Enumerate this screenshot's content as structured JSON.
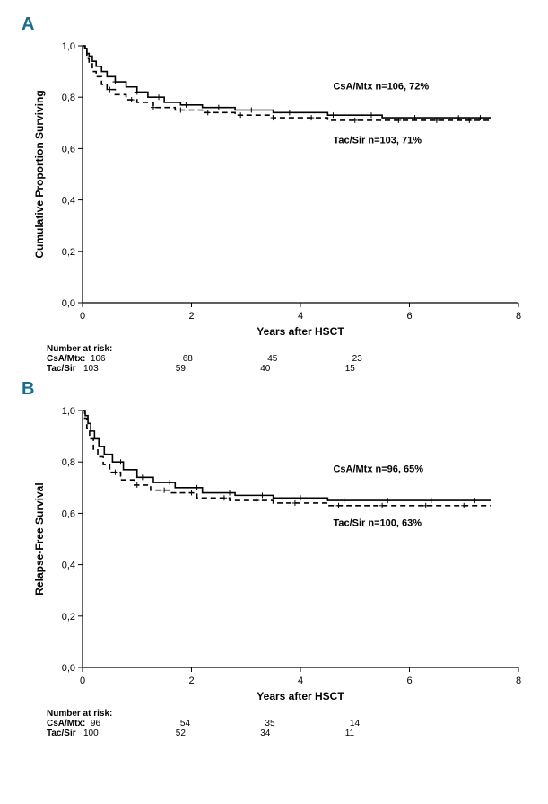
{
  "globals": {
    "xlabel": "Years after HSCT",
    "xlim": [
      0,
      8
    ],
    "xtick_step": 2,
    "ylim": [
      0.0,
      1.0
    ],
    "ytick_step": 0.2,
    "line_color": "#000000",
    "line_width": 1.6,
    "axis_color": "#000000",
    "background": "#ffffff",
    "font_family": "Arial",
    "axis_label_fontsize": 12,
    "tick_fontsize": 11,
    "annotation_fontsize": 10,
    "panel_label_color": "#1b6d8a",
    "panel_label_fontsize": 20,
    "decimal_separator": ","
  },
  "panels": [
    {
      "id": "A",
      "ylabel": "Cumulative Proportion Surviving",
      "series": [
        {
          "name": "CsA/Mtx",
          "dash": "solid",
          "label": "CsA/Mtx n=106, 72%",
          "label_xy": [
            4.6,
            0.83
          ],
          "points": [
            [
              0.0,
              1.0
            ],
            [
              0.05,
              0.99
            ],
            [
              0.08,
              0.97
            ],
            [
              0.12,
              0.96
            ],
            [
              0.18,
              0.94
            ],
            [
              0.25,
              0.92
            ],
            [
              0.35,
              0.9
            ],
            [
              0.45,
              0.88
            ],
            [
              0.6,
              0.86
            ],
            [
              0.8,
              0.84
            ],
            [
              1.0,
              0.82
            ],
            [
              1.2,
              0.8
            ],
            [
              1.5,
              0.78
            ],
            [
              1.8,
              0.77
            ],
            [
              2.2,
              0.76
            ],
            [
              2.8,
              0.75
            ],
            [
              3.5,
              0.74
            ],
            [
              4.5,
              0.73
            ],
            [
              5.5,
              0.72
            ],
            [
              7.5,
              0.72
            ]
          ],
          "censor_x": [
            0.6,
            1.0,
            1.4,
            1.9,
            2.5,
            3.1,
            3.8,
            4.6,
            5.3,
            6.1,
            6.9,
            7.3
          ]
        },
        {
          "name": "Tac/Sir",
          "dash": "dashed",
          "label": "Tac/Sir n=103, 71%",
          "label_xy": [
            4.6,
            0.62
          ],
          "points": [
            [
              0.0,
              1.0
            ],
            [
              0.04,
              0.98
            ],
            [
              0.08,
              0.95
            ],
            [
              0.12,
              0.93
            ],
            [
              0.18,
              0.9
            ],
            [
              0.25,
              0.88
            ],
            [
              0.35,
              0.85
            ],
            [
              0.45,
              0.83
            ],
            [
              0.6,
              0.81
            ],
            [
              0.8,
              0.79
            ],
            [
              1.0,
              0.78
            ],
            [
              1.3,
              0.76
            ],
            [
              1.7,
              0.75
            ],
            [
              2.2,
              0.74
            ],
            [
              2.8,
              0.73
            ],
            [
              3.5,
              0.72
            ],
            [
              4.5,
              0.71
            ],
            [
              5.5,
              0.71
            ],
            [
              7.5,
              0.71
            ]
          ],
          "censor_x": [
            0.5,
            0.9,
            1.3,
            1.8,
            2.3,
            2.9,
            3.5,
            4.2,
            5.0,
            5.8,
            6.5,
            7.1
          ]
        }
      ],
      "risk": {
        "header": "Number at risk:",
        "x_positions": [
          0,
          2,
          4,
          6
        ],
        "rows": [
          {
            "label": "CsA/Mtx:",
            "values": [
              106,
              68,
              45,
              23
            ]
          },
          {
            "label": "Tac/Sir",
            "values": [
              103,
              59,
              40,
              15
            ]
          }
        ]
      }
    },
    {
      "id": "B",
      "ylabel": "Relapse-Free Survival",
      "series": [
        {
          "name": "CsA/Mtx",
          "dash": "solid",
          "label": "CsA/Mtx n=96, 65%",
          "label_xy": [
            4.6,
            0.76
          ],
          "points": [
            [
              0.0,
              1.0
            ],
            [
              0.05,
              0.98
            ],
            [
              0.1,
              0.95
            ],
            [
              0.15,
              0.92
            ],
            [
              0.22,
              0.89
            ],
            [
              0.3,
              0.86
            ],
            [
              0.4,
              0.83
            ],
            [
              0.55,
              0.8
            ],
            [
              0.75,
              0.77
            ],
            [
              1.0,
              0.74
            ],
            [
              1.3,
              0.72
            ],
            [
              1.7,
              0.7
            ],
            [
              2.2,
              0.68
            ],
            [
              2.8,
              0.67
            ],
            [
              3.5,
              0.66
            ],
            [
              4.5,
              0.65
            ],
            [
              5.5,
              0.65
            ],
            [
              7.5,
              0.65
            ]
          ],
          "censor_x": [
            0.7,
            1.1,
            1.6,
            2.1,
            2.7,
            3.3,
            4.0,
            4.8,
            5.6,
            6.4,
            7.2
          ]
        },
        {
          "name": "Tac/Sir",
          "dash": "dashed",
          "label": "Tac/Sir n=100, 63%",
          "label_xy": [
            4.6,
            0.55
          ],
          "points": [
            [
              0.0,
              1.0
            ],
            [
              0.04,
              0.97
            ],
            [
              0.08,
              0.93
            ],
            [
              0.13,
              0.89
            ],
            [
              0.2,
              0.85
            ],
            [
              0.28,
              0.82
            ],
            [
              0.38,
              0.79
            ],
            [
              0.5,
              0.76
            ],
            [
              0.7,
              0.73
            ],
            [
              0.95,
              0.71
            ],
            [
              1.25,
              0.69
            ],
            [
              1.6,
              0.68
            ],
            [
              2.1,
              0.66
            ],
            [
              2.7,
              0.65
            ],
            [
              3.5,
              0.64
            ],
            [
              4.5,
              0.63
            ],
            [
              5.5,
              0.63
            ],
            [
              7.5,
              0.63
            ]
          ],
          "censor_x": [
            0.6,
            1.0,
            1.5,
            2.0,
            2.6,
            3.2,
            3.9,
            4.7,
            5.5,
            6.3,
            7.0
          ]
        }
      ],
      "risk": {
        "header": "Number at risk:",
        "x_positions": [
          0,
          2,
          4,
          6
        ],
        "rows": [
          {
            "label": "CsA/Mtx:",
            "values": [
              96,
              54,
              35,
              14
            ]
          },
          {
            "label": "Tac/Sir",
            "values": [
              100,
              52,
              34,
              11
            ]
          }
        ]
      }
    }
  ]
}
